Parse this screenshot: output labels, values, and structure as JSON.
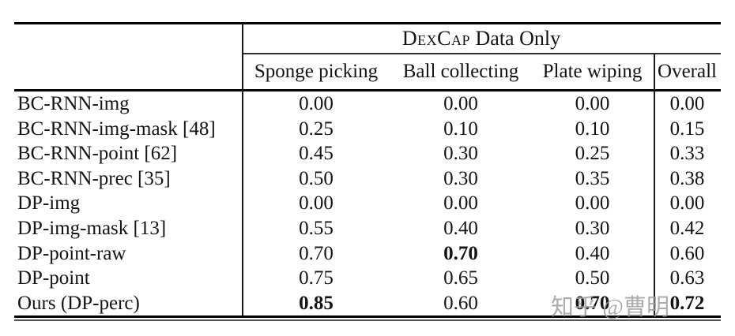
{
  "table": {
    "group_header": {
      "smallcaps": "DexCap",
      "rest": " Data Only"
    },
    "columns": [
      "Sponge picking",
      "Ball collecting",
      "Plate wiping",
      "Overall"
    ],
    "rows": [
      {
        "label": "BC-RNN-img",
        "cells": [
          {
            "text": "0.00"
          },
          {
            "text": "0.00"
          },
          {
            "text": "0.00"
          },
          {
            "text": "0.00"
          }
        ]
      },
      {
        "label": "BC-RNN-img-mask [48]",
        "cells": [
          {
            "text": "0.25"
          },
          {
            "text": "0.10"
          },
          {
            "text": "0.10"
          },
          {
            "text": "0.15"
          }
        ]
      },
      {
        "label": "BC-RNN-point [62]",
        "cells": [
          {
            "text": "0.45"
          },
          {
            "text": "0.30"
          },
          {
            "text": "0.25"
          },
          {
            "text": "0.33"
          }
        ]
      },
      {
        "label": "BC-RNN-prec [35]",
        "cells": [
          {
            "text": "0.50"
          },
          {
            "text": "0.30"
          },
          {
            "text": "0.35"
          },
          {
            "text": "0.38"
          }
        ]
      },
      {
        "label": "DP-img",
        "cells": [
          {
            "text": "0.00"
          },
          {
            "text": "0.00"
          },
          {
            "text": "0.00"
          },
          {
            "text": "0.00"
          }
        ]
      },
      {
        "label": "DP-img-mask [13]",
        "cells": [
          {
            "text": "0.55"
          },
          {
            "text": "0.40"
          },
          {
            "text": "0.30"
          },
          {
            "text": "0.42"
          }
        ]
      },
      {
        "label": "DP-point-raw",
        "cells": [
          {
            "text": "0.70"
          },
          {
            "text": "0.70",
            "bold": true
          },
          {
            "text": "0.40"
          },
          {
            "text": "0.60"
          }
        ]
      },
      {
        "label": "DP-point",
        "cells": [
          {
            "text": "0.75"
          },
          {
            "text": "0.65"
          },
          {
            "text": "0.50"
          },
          {
            "text": "0.63"
          }
        ]
      },
      {
        "label": "Ours (DP-perc)",
        "cells": [
          {
            "text": "0.85",
            "bold": true
          },
          {
            "text": "0.60"
          },
          {
            "text": "0.70",
            "bold": true
          },
          {
            "text": "0.72",
            "bold": true
          }
        ]
      }
    ]
  },
  "watermark": "知乎 @曹明",
  "colors": {
    "rule": "#000000",
    "text": "#141414",
    "watermark": "#9e9e9e"
  }
}
